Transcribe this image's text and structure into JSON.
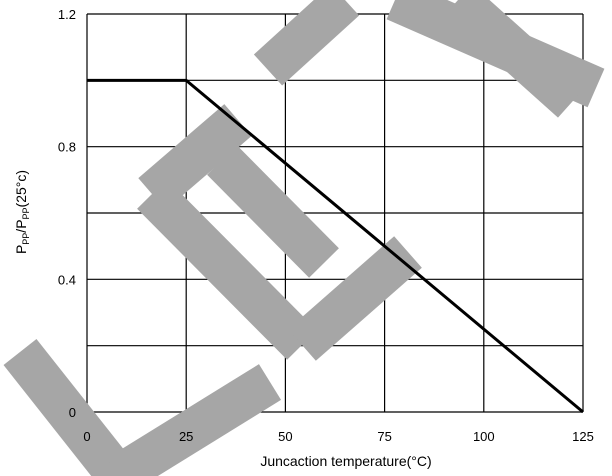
{
  "chart_data": {
    "type": "line",
    "title": "",
    "xlabel": "Juncaction  temperature(°C)",
    "ylabel": {
      "base1": "P",
      "sub1": "PP",
      "slash": "/P",
      "sub2": "PP",
      "rest": "(25°c)"
    },
    "xlim": [
      0,
      125
    ],
    "ylim": [
      0,
      1.2
    ],
    "x_ticks": [
      0,
      25,
      50,
      75,
      100,
      125
    ],
    "x_tick_labels": [
      "0",
      "25",
      "50",
      "75",
      "100",
      "125"
    ],
    "y_ticks": [
      0,
      0.4,
      0.8,
      1.2
    ],
    "y_tick_labels": [
      "0",
      "0.4",
      "0.8",
      "1.2"
    ],
    "y_grid": [
      0,
      0.2,
      0.4,
      0.6,
      0.8,
      1.0,
      1.2
    ],
    "grid": true,
    "series": [
      {
        "x": [
          0,
          25,
          125
        ],
        "y": [
          1.0,
          1.0,
          0.0
        ]
      }
    ],
    "watermark": {
      "text": "DELETE",
      "color": "#a6a6a6"
    }
  }
}
